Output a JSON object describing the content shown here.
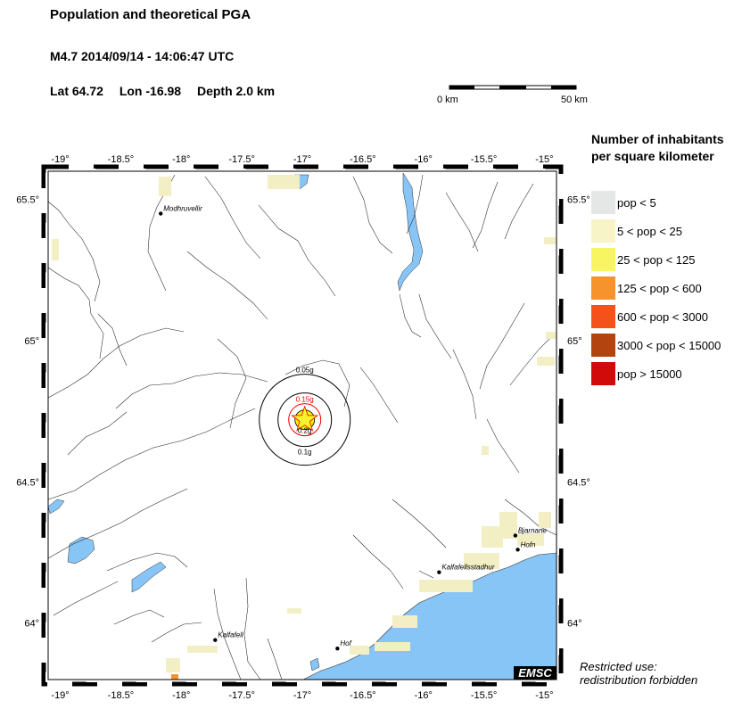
{
  "header": {
    "title": "Population and theoretical PGA",
    "event": "M4.7  2014/09/14 - 14:06:47 UTC",
    "lat": "Lat 64.72",
    "lon": "Lon -16.98",
    "depth": "Depth  2.0 km"
  },
  "scale": {
    "start_label": "0 km",
    "end_label": "50 km"
  },
  "legend": {
    "title_line1": "Number of inhabitants",
    "title_line2": "per square kilometer",
    "items": [
      {
        "label": "pop < 5",
        "color": "#e5e6e6"
      },
      {
        "label": "5 < pop < 25",
        "color": "#f7f5c8"
      },
      {
        "label": "25 < pop < 125",
        "color": "#f7f562"
      },
      {
        "label": "125 < pop < 600",
        "color": "#f6932e"
      },
      {
        "label": "600 < pop < 3000",
        "color": "#f5511a"
      },
      {
        "label": "3000 < pop < 15000",
        "color": "#b3440f"
      },
      {
        "label": "pop > 15000",
        "color": "#d10a0a"
      }
    ]
  },
  "map": {
    "lon_range": [
      -19.1,
      -14.9
    ],
    "lat_range": [
      63.8,
      65.6
    ],
    "lon_ticks": [
      "-19°",
      "-18.5°",
      "-18°",
      "-17.5°",
      "-17°",
      "-16.5°",
      "-16°",
      "-15.5°",
      "-15°"
    ],
    "lon_tick_values": [
      -19,
      -18.5,
      -18,
      -17.5,
      -17,
      -16.5,
      -16,
      -15.5,
      -15
    ],
    "lat_ticks": [
      "65.5°",
      "65°",
      "64.5°",
      "64°"
    ],
    "lat_tick_values": [
      65.5,
      65,
      64.5,
      64
    ],
    "epicenter": {
      "lon": -16.98,
      "lat": 64.72
    },
    "pga_labels": [
      "0.05g",
      "0.15g",
      "0.2g",
      "0.1g"
    ],
    "cities": [
      {
        "name": "Modhruvellir",
        "lon": -18.17,
        "lat": 65.45
      },
      {
        "name": "Bjarnane",
        "lon": -15.24,
        "lat": 64.31
      },
      {
        "name": "Hofn",
        "lon": -15.22,
        "lat": 64.26
      },
      {
        "name": "Kalfafellsstadhur",
        "lon": -15.87,
        "lat": 64.18
      },
      {
        "name": "Kalfafell",
        "lon": -17.72,
        "lat": 63.94
      },
      {
        "name": "Hof",
        "lon": -16.71,
        "lat": 63.91
      }
    ],
    "water_color": "#88c5f7",
    "badge": "EMSC"
  },
  "footer": {
    "line1": "Restricted use:",
    "line2": "redistribution forbidden"
  }
}
